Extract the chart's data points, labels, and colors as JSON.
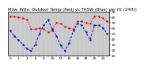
{
  "title": "Milw. Wthr. Outdoor Temp (Red) vs THSW (Blue) per Hr (24Hr)",
  "hours": [
    0,
    1,
    2,
    3,
    4,
    5,
    6,
    7,
    8,
    9,
    10,
    11,
    12,
    13,
    14,
    15,
    16,
    17,
    18,
    19,
    20,
    21,
    22,
    23
  ],
  "temp_red": [
    82,
    82,
    80,
    78,
    76,
    58,
    58,
    60,
    58,
    52,
    56,
    70,
    68,
    62,
    60,
    58,
    72,
    72,
    70,
    68,
    82,
    82,
    78,
    72
  ],
  "thsw_blue": [
    55,
    45,
    38,
    30,
    22,
    18,
    30,
    50,
    65,
    75,
    58,
    45,
    28,
    18,
    32,
    55,
    68,
    65,
    52,
    38,
    65,
    65,
    60,
    50
  ],
  "ylim": [
    10,
    90
  ],
  "yticks": [
    10,
    20,
    30,
    40,
    50,
    60,
    70,
    80,
    90
  ],
  "bg_color": "#ffffff",
  "plot_bg": "#cccccc",
  "red_color": "#cc0000",
  "blue_color": "#0000cc",
  "grid_color": "#999999",
  "title_fontsize": 3.8,
  "tick_fontsize": 3.2,
  "linewidth": 0.7,
  "markersize": 1.5
}
